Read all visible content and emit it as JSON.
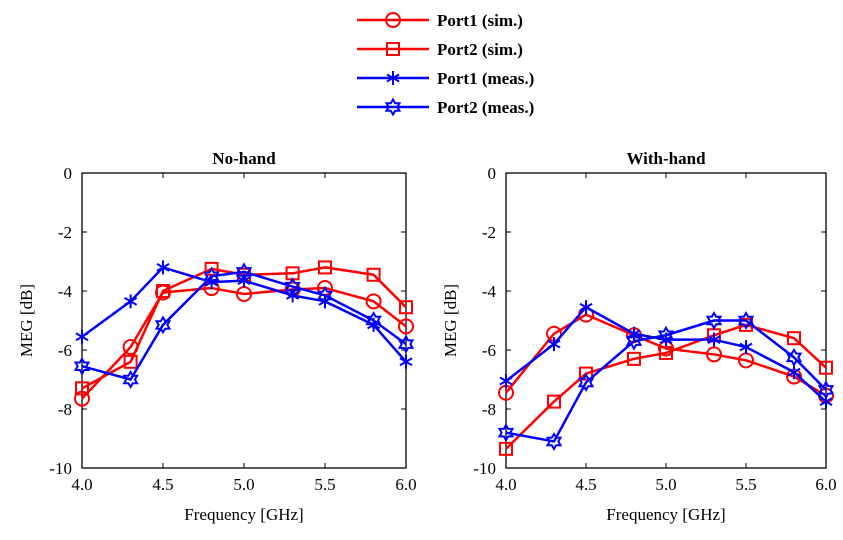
{
  "legend": {
    "entries": [
      {
        "label": "Port1 (sim.)",
        "color": "#ff0000",
        "marker": "circle"
      },
      {
        "label": "Port2 (sim.)",
        "color": "#ff0000",
        "marker": "square"
      },
      {
        "label": "Port1 (meas.)",
        "color": "#0000ff",
        "marker": "asterisk"
      },
      {
        "label": "Port2 (meas.)",
        "color": "#0000ff",
        "marker": "hexagram"
      }
    ]
  },
  "chart_data": [
    {
      "type": "line",
      "title": "No-hand",
      "xlabel": "Frequency [GHz]",
      "ylabel": "MEG [dB]",
      "xlim": [
        4.0,
        6.0
      ],
      "ylim": [
        -10,
        0
      ],
      "xticks": [
        "4.0",
        "4.5",
        "5.0",
        "5.5",
        "6.0"
      ],
      "yticks": [
        "0",
        "-2",
        "-4",
        "-6",
        "-8",
        "-10"
      ],
      "grid": false,
      "series": [
        {
          "name": "Port1 (sim.)",
          "color": "#ff0000",
          "marker": "circle",
          "x": [
            4.0,
            4.3,
            4.5,
            4.8,
            5.0,
            5.3,
            5.5,
            5.8,
            6.0
          ],
          "y": [
            -7.65,
            -5.9,
            -4.05,
            -3.9,
            -4.1,
            -3.95,
            -3.9,
            -4.35,
            -5.2
          ]
        },
        {
          "name": "Port2 (sim.)",
          "color": "#ff0000",
          "marker": "square",
          "x": [
            4.0,
            4.3,
            4.5,
            4.8,
            5.0,
            5.3,
            5.5,
            5.8,
            6.0
          ],
          "y": [
            -7.3,
            -6.4,
            -4.0,
            -3.25,
            -3.45,
            -3.4,
            -3.2,
            -3.45,
            -4.55
          ]
        },
        {
          "name": "Port1 (meas.)",
          "color": "#0000ff",
          "marker": "asterisk",
          "x": [
            4.0,
            4.3,
            4.5,
            4.8,
            5.0,
            5.3,
            5.5,
            5.8,
            6.0
          ],
          "y": [
            -5.55,
            -4.35,
            -3.2,
            -3.7,
            -3.65,
            -4.15,
            -4.35,
            -5.15,
            -6.4
          ]
        },
        {
          "name": "Port2 (meas.)",
          "color": "#0000ff",
          "marker": "hexagram",
          "x": [
            4.0,
            4.3,
            4.5,
            4.8,
            5.0,
            5.3,
            5.5,
            5.8,
            6.0
          ],
          "y": [
            -6.55,
            -7.0,
            -5.15,
            -3.5,
            -3.35,
            -3.85,
            -4.15,
            -5.0,
            -5.8
          ]
        }
      ]
    },
    {
      "type": "line",
      "title": "With-hand",
      "xlabel": "Frequency [GHz]",
      "ylabel": "MEG [dB]",
      "xlim": [
        4.0,
        6.0
      ],
      "ylim": [
        -10,
        0
      ],
      "xticks": [
        "4.0",
        "4.5",
        "5.0",
        "5.5",
        "6.0"
      ],
      "yticks": [
        "0",
        "-2",
        "-4",
        "-6",
        "-8",
        "-10"
      ],
      "grid": false,
      "series": [
        {
          "name": "Port1 (sim.)",
          "color": "#ff0000",
          "marker": "circle",
          "x": [
            4.0,
            4.3,
            4.5,
            4.8,
            5.0,
            5.3,
            5.5,
            5.8,
            6.0
          ],
          "y": [
            -7.45,
            -5.45,
            -4.8,
            -5.5,
            -5.95,
            -6.15,
            -6.35,
            -6.9,
            -7.55
          ]
        },
        {
          "name": "Port2 (sim.)",
          "color": "#ff0000",
          "marker": "square",
          "x": [
            4.0,
            4.3,
            4.5,
            4.8,
            5.0,
            5.3,
            5.5,
            5.8,
            6.0
          ],
          "y": [
            -9.35,
            -7.75,
            -6.8,
            -6.3,
            -6.1,
            -5.5,
            -5.15,
            -5.6,
            -6.6
          ]
        },
        {
          "name": "Port1 (meas.)",
          "color": "#0000ff",
          "marker": "asterisk",
          "x": [
            4.0,
            4.3,
            4.5,
            4.8,
            5.0,
            5.3,
            5.5,
            5.8,
            6.0
          ],
          "y": [
            -7.05,
            -5.8,
            -4.55,
            -5.45,
            -5.65,
            -5.65,
            -5.9,
            -6.75,
            -7.75
          ]
        },
        {
          "name": "Port2 (meas.)",
          "color": "#0000ff",
          "marker": "hexagram",
          "x": [
            4.0,
            4.3,
            4.5,
            4.8,
            5.0,
            5.3,
            5.5,
            5.8,
            6.0
          ],
          "y": [
            -8.8,
            -9.1,
            -7.1,
            -5.7,
            -5.5,
            -5.0,
            -5.0,
            -6.25,
            -7.35
          ]
        }
      ]
    }
  ]
}
